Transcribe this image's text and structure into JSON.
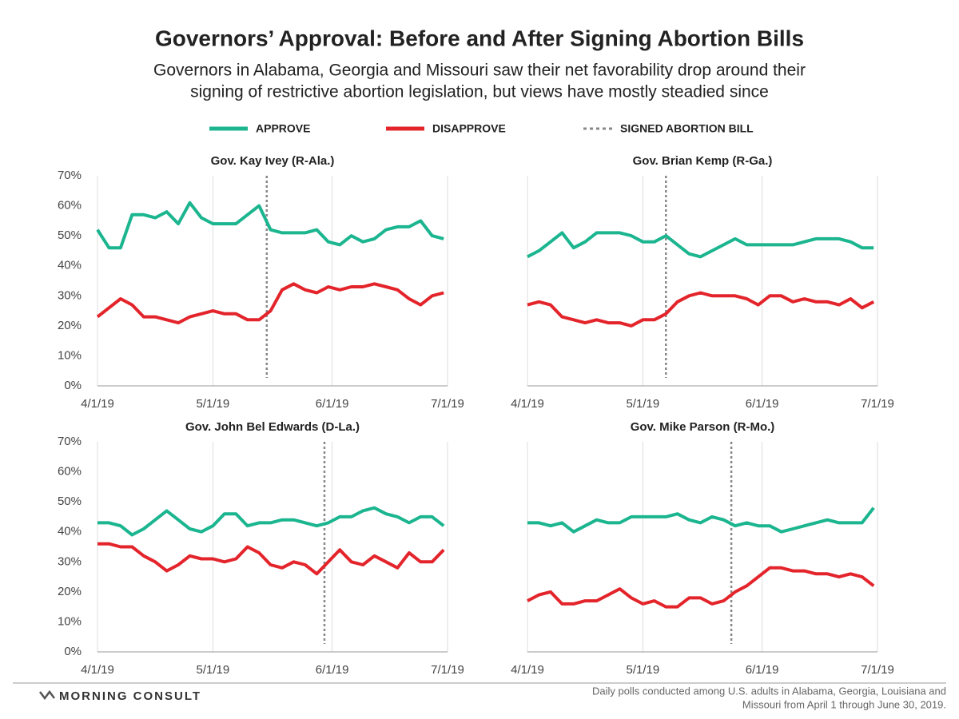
{
  "title": "Governors’ Approval: Before and After Signing Abortion Bills",
  "subtitle": [
    "Governors in Alabama, Georgia and Missouri saw their net favorability drop around their",
    "signing of restrictive abortion legislation, but views have mostly steadied since"
  ],
  "footer": {
    "brand": "MORNING CONSULT",
    "note": [
      "Daily polls conducted among U.S. adults in Alabama, Georgia, Louisiana and",
      "Missouri  from April 1 through June 30, 2019."
    ]
  },
  "chart_data": [
    {
      "type": "line",
      "title": "Gov. Kay Ivey (R-Ala.)",
      "x": [
        "2019-04-01",
        "2019-04-04",
        "2019-04-07",
        "2019-04-10",
        "2019-04-13",
        "2019-04-16",
        "2019-04-19",
        "2019-04-22",
        "2019-04-25",
        "2019-04-28",
        "2019-05-01",
        "2019-05-04",
        "2019-05-07",
        "2019-05-10",
        "2019-05-13",
        "2019-05-16",
        "2019-05-19",
        "2019-05-22",
        "2019-05-25",
        "2019-05-28",
        "2019-05-31",
        "2019-06-03",
        "2019-06-06",
        "2019-06-09",
        "2019-06-12",
        "2019-06-15",
        "2019-06-18",
        "2019-06-21",
        "2019-06-24",
        "2019-06-27",
        "2019-06-30"
      ],
      "series": [
        {
          "name": "APPROVE",
          "color": "#1bb58f",
          "values": [
            52,
            46,
            46,
            57,
            57,
            56,
            58,
            54,
            61,
            56,
            54,
            54,
            54,
            57,
            60,
            52,
            51,
            51,
            51,
            52,
            48,
            47,
            50,
            48,
            49,
            52,
            53,
            53,
            55,
            50,
            49
          ]
        },
        {
          "name": "DISAPPROVE",
          "color": "#e3242b",
          "values": [
            23,
            26,
            29,
            27,
            23,
            23,
            22,
            21,
            23,
            24,
            25,
            24,
            24,
            22,
            22,
            25,
            32,
            34,
            32,
            31,
            33,
            32,
            33,
            33,
            34,
            33,
            32,
            29,
            27,
            30,
            31
          ]
        }
      ],
      "vline": {
        "x": "2019-05-15",
        "label": "SIGNED ABORTION BILL",
        "color": "#888888"
      },
      "xlim": [
        "2019-04-01",
        "2019-07-01"
      ],
      "xticks": [
        {
          "value": "2019-04-01",
          "label": "4/1/19"
        },
        {
          "value": "2019-05-01",
          "label": "5/1/19"
        },
        {
          "value": "2019-06-01",
          "label": "6/1/19"
        },
        {
          "value": "2019-07-01",
          "label": "7/1/19"
        }
      ],
      "ylim": [
        0,
        70
      ],
      "yticks": [
        {
          "value": 0,
          "label": "0%"
        },
        {
          "value": 10,
          "label": "10%"
        },
        {
          "value": 20,
          "label": "20%"
        },
        {
          "value": 30,
          "label": "30%"
        },
        {
          "value": 40,
          "label": "40%"
        },
        {
          "value": 50,
          "label": "50%"
        },
        {
          "value": 60,
          "label": "60%"
        },
        {
          "value": 70,
          "label": "70%"
        }
      ]
    },
    {
      "type": "line",
      "title": "Gov. Brian Kemp (R-Ga.)",
      "x": [
        "2019-04-01",
        "2019-04-04",
        "2019-04-07",
        "2019-04-10",
        "2019-04-13",
        "2019-04-16",
        "2019-04-19",
        "2019-04-22",
        "2019-04-25",
        "2019-04-28",
        "2019-05-01",
        "2019-05-04",
        "2019-05-07",
        "2019-05-10",
        "2019-05-13",
        "2019-05-16",
        "2019-05-19",
        "2019-05-22",
        "2019-05-25",
        "2019-05-28",
        "2019-05-31",
        "2019-06-03",
        "2019-06-06",
        "2019-06-09",
        "2019-06-12",
        "2019-06-15",
        "2019-06-18",
        "2019-06-21",
        "2019-06-24",
        "2019-06-27",
        "2019-06-30"
      ],
      "series": [
        {
          "color": "#1bb58f",
          "values": [
            43,
            45,
            48,
            51,
            46,
            48,
            51,
            51,
            51,
            50,
            48,
            48,
            50,
            47,
            44,
            43,
            45,
            47,
            49,
            47,
            47,
            47,
            47,
            47,
            48,
            49,
            49,
            49,
            48,
            46,
            46
          ]
        },
        {
          "color": "#e3242b",
          "values": [
            27,
            28,
            27,
            23,
            22,
            21,
            22,
            21,
            21,
            20,
            22,
            22,
            24,
            28,
            30,
            31,
            30,
            30,
            30,
            29,
            27,
            30,
            30,
            28,
            29,
            28,
            28,
            27,
            29,
            26,
            28
          ]
        }
      ],
      "vline": {
        "x": "2019-05-07",
        "color": "#888888"
      },
      "xlim": [
        "2019-04-01",
        "2019-07-01"
      ],
      "xticks": [
        {
          "value": "2019-04-01",
          "label": "4/1/19"
        },
        {
          "value": "2019-05-01",
          "label": "5/1/19"
        },
        {
          "value": "2019-06-01",
          "label": "6/1/19"
        },
        {
          "value": "2019-07-01",
          "label": "7/1/19"
        }
      ],
      "ylim": [
        0,
        70
      ]
    },
    {
      "type": "line",
      "title": "Gov. John Bel Edwards (D-La.)",
      "x": [
        "2019-04-01",
        "2019-04-04",
        "2019-04-07",
        "2019-04-10",
        "2019-04-13",
        "2019-04-16",
        "2019-04-19",
        "2019-04-22",
        "2019-04-25",
        "2019-04-28",
        "2019-05-01",
        "2019-05-04",
        "2019-05-07",
        "2019-05-10",
        "2019-05-13",
        "2019-05-16",
        "2019-05-19",
        "2019-05-22",
        "2019-05-25",
        "2019-05-28",
        "2019-05-31",
        "2019-06-03",
        "2019-06-06",
        "2019-06-09",
        "2019-06-12",
        "2019-06-15",
        "2019-06-18",
        "2019-06-21",
        "2019-06-24",
        "2019-06-27",
        "2019-06-30"
      ],
      "series": [
        {
          "color": "#1bb58f",
          "values": [
            43,
            43,
            42,
            39,
            41,
            44,
            47,
            44,
            41,
            40,
            42,
            46,
            46,
            42,
            43,
            43,
            44,
            44,
            43,
            42,
            43,
            45,
            45,
            47,
            48,
            46,
            45,
            43,
            45,
            45,
            42
          ]
        },
        {
          "color": "#e3242b",
          "values": [
            36,
            36,
            35,
            35,
            32,
            30,
            27,
            29,
            32,
            31,
            31,
            30,
            31,
            35,
            33,
            29,
            28,
            30,
            29,
            26,
            30,
            34,
            30,
            29,
            32,
            30,
            28,
            33,
            30,
            30,
            34
          ]
        }
      ],
      "vline": {
        "x": "2019-05-30",
        "color": "#888888"
      },
      "xlim": [
        "2019-04-01",
        "2019-07-01"
      ],
      "xticks": [
        {
          "value": "2019-04-01",
          "label": "4/1/19"
        },
        {
          "value": "2019-05-01",
          "label": "5/1/19"
        },
        {
          "value": "2019-06-01",
          "label": "6/1/19"
        },
        {
          "value": "2019-07-01",
          "label": "7/1/19"
        }
      ],
      "ylim": [
        0,
        70
      ],
      "yticks": [
        {
          "value": 0,
          "label": "0%"
        },
        {
          "value": 10,
          "label": "10%"
        },
        {
          "value": 20,
          "label": "20%"
        },
        {
          "value": 30,
          "label": "30%"
        },
        {
          "value": 40,
          "label": "40%"
        },
        {
          "value": 50,
          "label": "50%"
        },
        {
          "value": 60,
          "label": "60%"
        },
        {
          "value": 70,
          "label": "70%"
        }
      ]
    },
    {
      "type": "line",
      "title": "Gov. Mike Parson (R-Mo.)",
      "x": [
        "2019-04-01",
        "2019-04-04",
        "2019-04-07",
        "2019-04-10",
        "2019-04-13",
        "2019-04-16",
        "2019-04-19",
        "2019-04-22",
        "2019-04-25",
        "2019-04-28",
        "2019-05-01",
        "2019-05-04",
        "2019-05-07",
        "2019-05-10",
        "2019-05-13",
        "2019-05-16",
        "2019-05-19",
        "2019-05-22",
        "2019-05-25",
        "2019-05-28",
        "2019-05-31",
        "2019-06-03",
        "2019-06-06",
        "2019-06-09",
        "2019-06-12",
        "2019-06-15",
        "2019-06-18",
        "2019-06-21",
        "2019-06-24",
        "2019-06-27",
        "2019-06-30"
      ],
      "series": [
        {
          "color": "#1bb58f",
          "values": [
            43,
            43,
            42,
            43,
            40,
            42,
            44,
            43,
            43,
            45,
            45,
            45,
            45,
            46,
            44,
            43,
            45,
            44,
            42,
            43,
            42,
            42,
            40,
            41,
            42,
            43,
            44,
            43,
            43,
            43,
            48
          ]
        },
        {
          "color": "#e3242b",
          "values": [
            17,
            19,
            20,
            16,
            16,
            17,
            17,
            19,
            21,
            18,
            16,
            17,
            15,
            15,
            18,
            18,
            16,
            17,
            20,
            22,
            25,
            28,
            28,
            27,
            27,
            26,
            26,
            25,
            26,
            25,
            22
          ]
        }
      ],
      "vline": {
        "x": "2019-05-24",
        "color": "#888888"
      },
      "xlim": [
        "2019-04-01",
        "2019-07-01"
      ],
      "xticks": [
        {
          "value": "2019-04-01",
          "label": "4/1/19"
        },
        {
          "value": "2019-05-01",
          "label": "5/1/19"
        },
        {
          "value": "2019-06-01",
          "label": "6/1/19"
        },
        {
          "value": "2019-07-01",
          "label": "7/1/19"
        }
      ],
      "ylim": [
        0,
        70
      ]
    }
  ]
}
